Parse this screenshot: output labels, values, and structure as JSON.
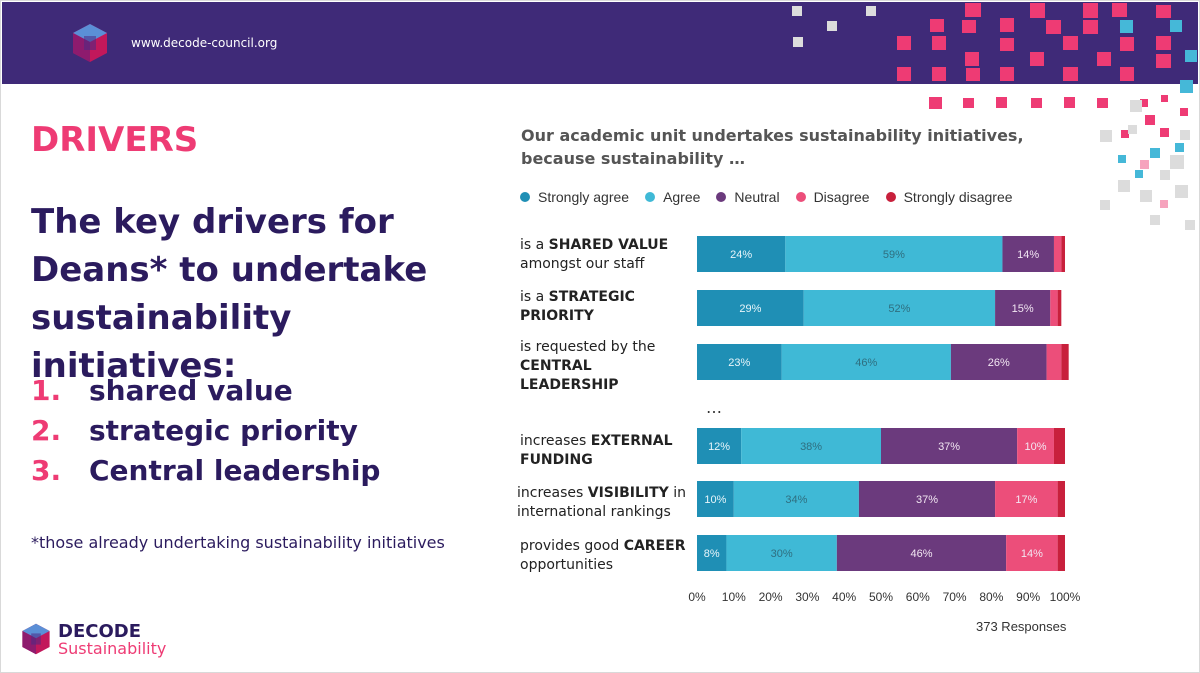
{
  "header": {
    "url": "www.decode-council.org",
    "colors": {
      "banner": "#3f2a78",
      "accent_pink": "#ee3b74"
    }
  },
  "left": {
    "section_title": "DRIVERS",
    "headline": "The key drivers for Deans* to undertake sustainability initiatives:",
    "drivers": [
      {
        "num": "1.",
        "text": "shared value"
      },
      {
        "num": "2.",
        "text": "strategic priority"
      },
      {
        "num": "3.",
        "text": "Central leadership"
      }
    ],
    "footnote": "*those already undertaking sustainability initiatives"
  },
  "brand": {
    "name": "DECODE",
    "sub": "Sustainability"
  },
  "chart_data": {
    "type": "bar",
    "orientation": "horizontal-stacked-100",
    "title_line1": "Our academic unit undertakes sustainability initiatives,",
    "title_line2": "because sustainability …",
    "legend": [
      "Strongly agree",
      "Agree",
      "Neutral",
      "Disagree",
      "Strongly disagree"
    ],
    "legend_placement": "top",
    "colors": [
      "#1f8fb5",
      "#3fb9d6",
      "#6b3a7d",
      "#ec4e7a",
      "#c8203c"
    ],
    "x_ticks": [
      "0%",
      "10%",
      "20%",
      "30%",
      "40%",
      "50%",
      "60%",
      "70%",
      "80%",
      "90%",
      "100%"
    ],
    "xlim": [
      0,
      100
    ],
    "responses": "373 Responses",
    "ellipsis": "…",
    "categories": [
      {
        "pre": "is a ",
        "bold": "SHARED VALUE",
        "post": " amongst our staff"
      },
      {
        "pre": "is a ",
        "bold": "STRATEGIC PRIORITY",
        "post": ""
      },
      {
        "pre": "is requested by the ",
        "bold": "CENTRAL LEADERSHIP",
        "post": ""
      },
      {
        "pre": "increases ",
        "bold": "EXTERNAL FUNDING",
        "post": ""
      },
      {
        "pre": "increases ",
        "bold": "VISIBILITY",
        "post": " in international rankings"
      },
      {
        "pre": "provides good ",
        "bold": "CAREER",
        "post": " opportunities"
      }
    ],
    "series": [
      {
        "name": "Strongly agree",
        "values": [
          24,
          29,
          23,
          12,
          10,
          8
        ]
      },
      {
        "name": "Agree",
        "values": [
          59,
          52,
          46,
          38,
          34,
          30
        ]
      },
      {
        "name": "Neutral",
        "values": [
          14,
          15,
          26,
          37,
          37,
          46
        ]
      },
      {
        "name": "Disagree",
        "values": [
          2,
          2,
          4,
          10,
          17,
          14
        ]
      },
      {
        "name": "Strongly disagree",
        "values": [
          1,
          1,
          2,
          3,
          2,
          2
        ]
      }
    ],
    "data_labels": [
      [
        "24%",
        "59%",
        "14%",
        "",
        ""
      ],
      [
        "29%",
        "52%",
        "15%",
        "",
        ""
      ],
      [
        "23%",
        "46%",
        "26%",
        "",
        ""
      ],
      [
        "12%",
        "38%",
        "37%",
        "10%",
        ""
      ],
      [
        "10%",
        "34%",
        "37%",
        "17%",
        ""
      ],
      [
        "8%",
        "30%",
        "46%",
        "14%",
        ""
      ]
    ]
  }
}
